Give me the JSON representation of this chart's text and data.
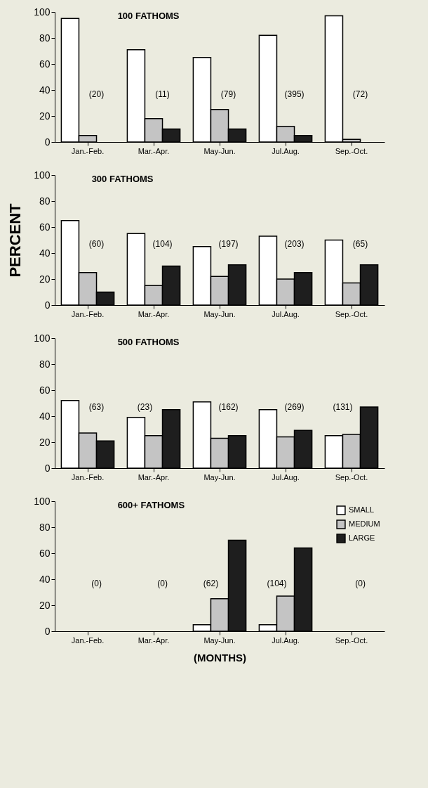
{
  "chart_data": [
    {
      "type": "bar",
      "title": "100 FATHOMS",
      "categories": [
        "Jan.-Feb.",
        "Mar.-Apr.",
        "May-Jun.",
        "Jul.Aug.",
        "Sep.-Oct."
      ],
      "ylim": [
        0,
        100
      ],
      "yticks": [
        0,
        20,
        40,
        60,
        80,
        100
      ],
      "series": [
        {
          "color": "#ffffff",
          "values": [
            95,
            71,
            65,
            82,
            97
          ]
        },
        {
          "color": "#c4c4c4",
          "values": [
            5,
            18,
            25,
            12,
            2
          ]
        },
        {
          "color": "#1e1e1e",
          "values": [
            null,
            10,
            10,
            5,
            null
          ]
        }
      ],
      "annotations": [
        "(20)",
        "(11)",
        "(79)",
        "(395)",
        "(72)"
      ]
    },
    {
      "type": "bar",
      "title": "300 FATHOMS",
      "ylabel": "PERCENT",
      "categories": [
        "Jan.-Feb.",
        "Mar.-Apr.",
        "May-Jun.",
        "Jul.Aug.",
        "Sep.-Oct."
      ],
      "ylim": [
        0,
        100
      ],
      "yticks": [
        0,
        20,
        40,
        60,
        80,
        100
      ],
      "series": [
        {
          "color": "#ffffff",
          "values": [
            65,
            55,
            45,
            53,
            50
          ]
        },
        {
          "color": "#c4c4c4",
          "values": [
            25,
            15,
            22,
            20,
            17
          ]
        },
        {
          "color": "#1e1e1e",
          "values": [
            10,
            30,
            31,
            25,
            31
          ]
        }
      ],
      "annotations": [
        "(60)",
        "(104)",
        "(197)",
        "(203)",
        "(65)"
      ]
    },
    {
      "type": "bar",
      "title": "500 FATHOMS",
      "categories": [
        "Jan.-Feb.",
        "Mar.-Apr.",
        "May-Jun.",
        "Jul.Aug.",
        "Sep.-Oct."
      ],
      "ylim": [
        0,
        100
      ],
      "yticks": [
        0,
        20,
        40,
        60,
        80,
        100
      ],
      "series": [
        {
          "color": "#ffffff",
          "values": [
            52,
            39,
            51,
            45,
            25
          ]
        },
        {
          "color": "#c4c4c4",
          "values": [
            27,
            25,
            23,
            24,
            26
          ]
        },
        {
          "color": "#1e1e1e",
          "values": [
            21,
            45,
            25,
            29,
            47
          ]
        }
      ],
      "annotations": [
        "(63)",
        "(23)",
        "(162)",
        "(269)",
        "(131)"
      ]
    },
    {
      "type": "bar",
      "title": "600+ FATHOMS",
      "xlabel": "(MONTHS)",
      "legend": "top right",
      "categories": [
        "Jan.-Feb.",
        "Mar.-Apr.",
        "May-Jun.",
        "Jul.Aug.",
        "Sep.-Oct."
      ],
      "ylim": [
        0,
        100
      ],
      "yticks": [
        0,
        20,
        40,
        60,
        80,
        100
      ],
      "series": [
        {
          "name": "SMALL",
          "color": "#ffffff",
          "values": [
            null,
            null,
            5,
            5,
            null
          ]
        },
        {
          "name": "MEDIUM",
          "color": "#c4c4c4",
          "values": [
            null,
            null,
            25,
            27,
            null
          ]
        },
        {
          "name": "LARGE",
          "color": "#1e1e1e",
          "values": [
            null,
            null,
            70,
            64,
            null
          ]
        }
      ],
      "annotations": [
        "(0)",
        "(0)",
        "(62)",
        "(104)",
        "(0)"
      ]
    }
  ]
}
